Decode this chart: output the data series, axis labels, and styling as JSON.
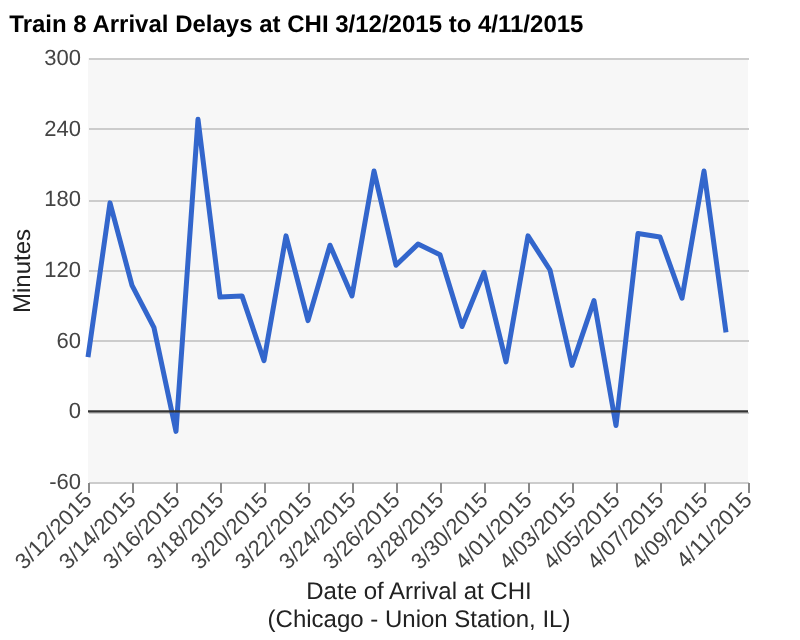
{
  "chart_data": {
    "type": "line",
    "title": "Train 8 Arrival Delays at CHI 3/12/2015 to 4/11/2015",
    "xlabel": "Date of Arrival at CHI\n(Chicago - Union Station, IL)",
    "ylabel": "Minutes",
    "x": [
      "2015-03-12",
      "2015-03-13",
      "2015-03-14",
      "2015-03-15",
      "2015-03-16",
      "2015-03-17",
      "2015-03-18",
      "2015-03-19",
      "2015-03-20",
      "2015-03-21",
      "2015-03-22",
      "2015-03-23",
      "2015-03-24",
      "2015-03-25",
      "2015-03-26",
      "2015-03-27",
      "2015-03-28",
      "2015-03-29",
      "2015-03-30",
      "2015-03-31",
      "2015-04-01",
      "2015-04-02",
      "2015-04-03",
      "2015-04-04",
      "2015-04-05",
      "2015-04-06",
      "2015-04-07",
      "2015-04-08",
      "2015-04-09",
      "2015-04-10"
    ],
    "series": [
      {
        "color": "#3366cc",
        "values": [
          46,
          177,
          107,
          71,
          -17,
          248,
          97,
          98,
          43,
          149,
          77,
          141,
          98,
          204,
          124,
          142,
          133,
          72,
          118,
          42,
          149,
          120,
          39,
          94,
          -12,
          151,
          148,
          96,
          204,
          67
        ]
      }
    ],
    "xlim": [
      "2015-03-12",
      "2015-04-11"
    ],
    "xticks": [
      {
        "value": "2015-03-12",
        "label": "3/12/2015"
      },
      {
        "value": "2015-03-14",
        "label": "3/14/2015"
      },
      {
        "value": "2015-03-16",
        "label": "3/16/2015"
      },
      {
        "value": "2015-03-18",
        "label": "3/18/2015"
      },
      {
        "value": "2015-03-20",
        "label": "3/20/2015"
      },
      {
        "value": "2015-03-22",
        "label": "3/22/2015"
      },
      {
        "value": "2015-03-24",
        "label": "3/24/2015"
      },
      {
        "value": "2015-03-26",
        "label": "3/26/2015"
      },
      {
        "value": "2015-03-28",
        "label": "3/28/2015"
      },
      {
        "value": "2015-03-30",
        "label": "3/30/2015"
      },
      {
        "value": "2015-04-01",
        "label": "4/01/2015"
      },
      {
        "value": "2015-04-03",
        "label": "4/03/2015"
      },
      {
        "value": "2015-04-05",
        "label": "4/05/2015"
      },
      {
        "value": "2015-04-07",
        "label": "4/07/2015"
      },
      {
        "value": "2015-04-09",
        "label": "4/09/2015"
      },
      {
        "value": "2015-04-11",
        "label": "4/11/2015"
      }
    ],
    "ylim": [
      -60,
      300
    ],
    "yticks": [
      -60,
      0,
      60,
      120,
      180,
      240,
      300
    ],
    "ref_lines": [
      {
        "axis": "y",
        "value": 0,
        "color": "#333333"
      }
    ],
    "grid": "y",
    "marker": "none",
    "line_style": "solid"
  }
}
